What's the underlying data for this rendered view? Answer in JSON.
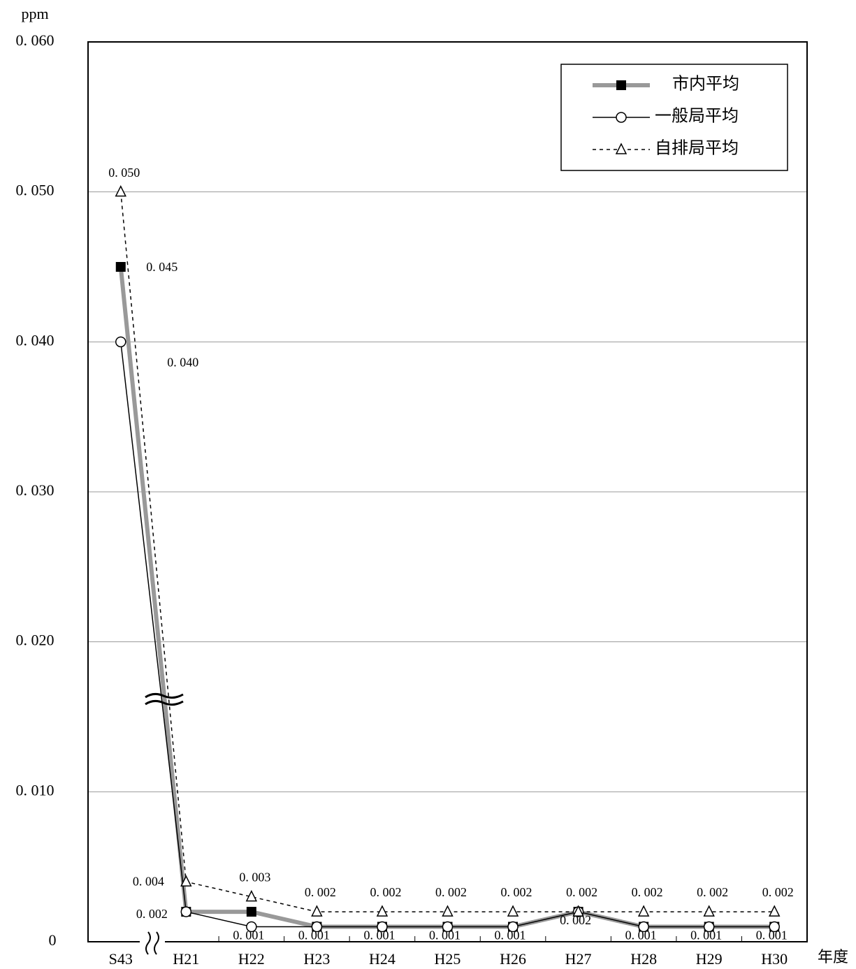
{
  "chart_data": {
    "type": "line",
    "y_label": "ppm",
    "x_label": "年度",
    "categories": [
      "S43",
      "H21",
      "H22",
      "H23",
      "H24",
      "H25",
      "H26",
      "H27",
      "H28",
      "H29",
      "H30"
    ],
    "series": [
      {
        "name": "市内平均",
        "color": "#999999",
        "line_style": "thick",
        "marker": "square",
        "values": [
          0.045,
          0.002,
          0.002,
          0.001,
          0.001,
          0.001,
          0.001,
          0.002,
          0.001,
          0.001,
          0.001
        ],
        "value_labels": [
          "0. 045",
          "0. 002",
          null,
          null,
          null,
          null,
          null,
          null,
          null,
          null,
          null
        ]
      },
      {
        "name": "一般局平均",
        "color": "#000000",
        "line_style": "solid",
        "marker": "circle",
        "values": [
          0.04,
          0.002,
          0.001,
          0.001,
          0.001,
          0.001,
          0.001,
          0.002,
          0.001,
          0.001,
          0.001
        ],
        "value_labels": [
          "0. 040",
          null,
          "0. 001",
          "0. 001",
          "0. 001",
          "0. 001",
          "0. 001",
          "0. 002",
          "0. 001",
          "0. 001",
          "0. 001"
        ]
      },
      {
        "name": "自排局平均",
        "color": "#000000",
        "line_style": "dashed",
        "marker": "triangle",
        "values": [
          0.05,
          0.004,
          0.003,
          0.002,
          0.002,
          0.002,
          0.002,
          0.002,
          0.002,
          0.002,
          0.002
        ],
        "value_labels": [
          "0. 050",
          "0. 004",
          "0. 003",
          "0. 002",
          "0. 002",
          "0. 002",
          "0. 002",
          "0. 002",
          "0. 002",
          "0. 002",
          "0. 002"
        ]
      }
    ],
    "ylim": [
      0,
      0.06
    ],
    "yticks": [
      0,
      {
        "value": 0.01,
        "label": "0. 010"
      },
      {
        "value": 0.02,
        "label": "0. 020"
      },
      {
        "value": 0.03,
        "label": "0. 030"
      },
      {
        "value": 0.04,
        "label": "0. 040"
      },
      {
        "value": 0.05,
        "label": "0. 050"
      },
      {
        "value": 0.06,
        "label": "0. 060"
      }
    ],
    "grid": true,
    "legend": "upper right"
  }
}
